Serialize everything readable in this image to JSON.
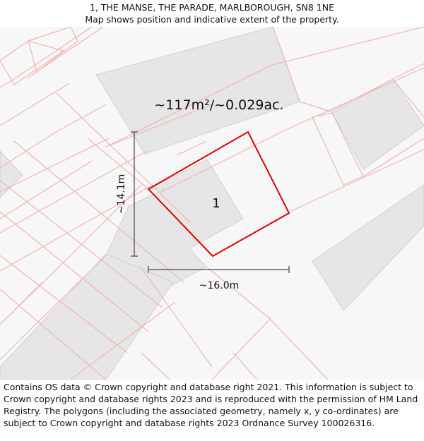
{
  "header": {
    "title": "1, THE MANSE, THE PARADE, MARLBOROUGH, SN8 1NE",
    "subtitle": "Map shows position and indicative extent of the property."
  },
  "map": {
    "area_label": "~117m²/~0.029ac.",
    "plot_number": "1",
    "height_label": "~14.1m",
    "width_label": "~16.0m",
    "colors": {
      "background": "#f7f7f7",
      "building_fill": "#e6e6e6",
      "building_stroke": "#c8c8c8",
      "boundary_line": "#f4b4b4",
      "property_outline": "#e00000",
      "dimension_line": "#444444"
    }
  },
  "footer": {
    "attribution": "Contains OS data © Crown copyright and database right 2021. This information is subject to Crown copyright and database rights 2023 and is reproduced with the permission of HM Land Registry. The polygons (including the associated geometry, namely x, y co-ordinates) are subject to Crown copyright and database rights 2023 Ordnance Survey 100026316."
  }
}
